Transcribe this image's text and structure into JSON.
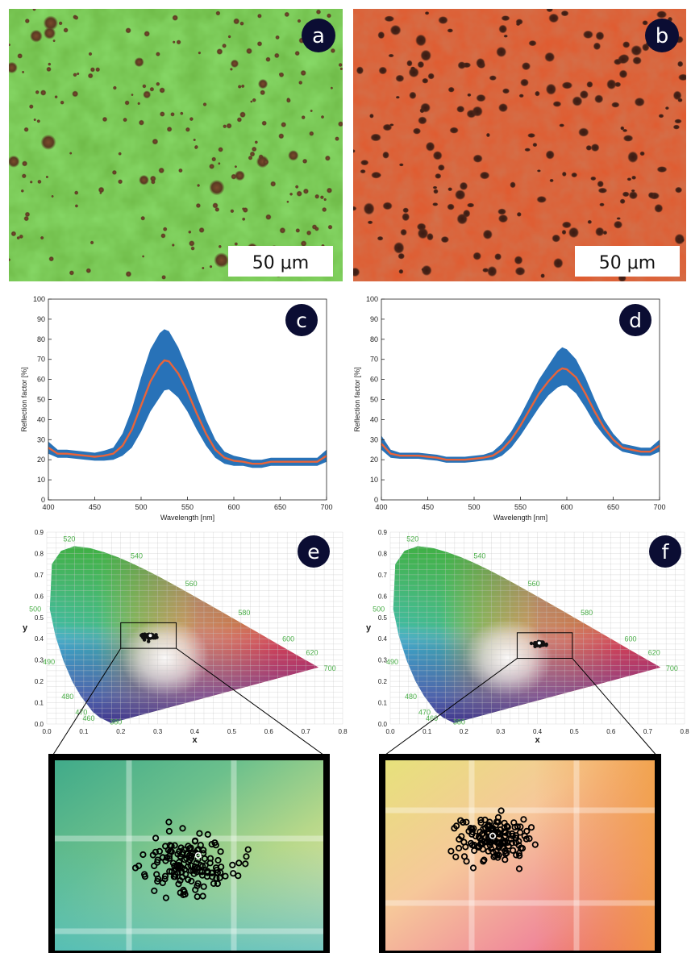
{
  "panels": {
    "a": {
      "letter": "a",
      "scalebar": "50 μm"
    },
    "b": {
      "letter": "b",
      "scalebar": "50 μm"
    },
    "c": {
      "letter": "c"
    },
    "d": {
      "letter": "d"
    },
    "e": {
      "letter": "e"
    },
    "f": {
      "letter": "f"
    }
  },
  "colors": {
    "micro_green": "#6db845",
    "micro_orange": "#e2582c",
    "band_blue": "#2872b8",
    "mean_orange": "#e8643a",
    "badge": "#0b0d33",
    "wavelength_label_green": "#4aae48"
  },
  "chart_data": [
    {
      "panel": "c",
      "type": "area",
      "xlabel": "Wavelength [nm]",
      "ylabel": "Reflection factor [%]",
      "xlim": [
        400,
        700
      ],
      "ylim": [
        0,
        100
      ],
      "xticks": [
        400,
        450,
        500,
        550,
        600,
        650,
        700
      ],
      "yticks": [
        0,
        10,
        20,
        30,
        40,
        50,
        60,
        70,
        80,
        90,
        100
      ],
      "grid": false,
      "x": [
        400,
        410,
        420,
        430,
        440,
        450,
        460,
        470,
        480,
        490,
        500,
        510,
        520,
        525,
        530,
        540,
        550,
        560,
        570,
        580,
        590,
        600,
        610,
        620,
        630,
        640,
        650,
        660,
        670,
        680,
        690,
        700
      ],
      "series": [
        {
          "role": "mean",
          "values": [
            26,
            23,
            23,
            22.5,
            22,
            21.5,
            22,
            23,
            27,
            35,
            47,
            59,
            67,
            69.5,
            69,
            63,
            54,
            43,
            33,
            25,
            21,
            19.5,
            19,
            18,
            18,
            19,
            19,
            19,
            19,
            19,
            19,
            22
          ]
        },
        {
          "role": "upper",
          "values": [
            29,
            25,
            25,
            24.5,
            24,
            23.5,
            24.5,
            26,
            33,
            45,
            61,
            75,
            83,
            85,
            84,
            76,
            65,
            52,
            40,
            30,
            24,
            22,
            21,
            20,
            20,
            21,
            21,
            21,
            21,
            21,
            21,
            25
          ]
        },
        {
          "role": "lower",
          "values": [
            23,
            21,
            21,
            20.5,
            20,
            19.5,
            19.5,
            20,
            22,
            26,
            34,
            44,
            51,
            54.5,
            55,
            51,
            44,
            35,
            27,
            21,
            18,
            17,
            17,
            16,
            16,
            17,
            17,
            17,
            17,
            17,
            17,
            19
          ]
        }
      ]
    },
    {
      "panel": "d",
      "type": "area",
      "xlabel": "Wavelength [nm]",
      "ylabel": "Reflection factor [%]",
      "xlim": [
        400,
        700
      ],
      "ylim": [
        0,
        100
      ],
      "xticks": [
        400,
        450,
        500,
        550,
        600,
        650,
        700
      ],
      "yticks": [
        0,
        10,
        20,
        30,
        40,
        50,
        60,
        70,
        80,
        90,
        100
      ],
      "grid": false,
      "x": [
        400,
        410,
        420,
        430,
        440,
        450,
        460,
        470,
        480,
        490,
        500,
        510,
        520,
        530,
        540,
        550,
        560,
        570,
        580,
        590,
        595,
        600,
        610,
        620,
        630,
        640,
        650,
        660,
        670,
        680,
        690,
        700
      ],
      "series": [
        {
          "role": "mean",
          "values": [
            28,
            23,
            22,
            22,
            22,
            21.5,
            21,
            20,
            20,
            20,
            20.5,
            21,
            22,
            25,
            30,
            37,
            45,
            53,
            59,
            64,
            65.5,
            65,
            61,
            53,
            44,
            36,
            30,
            26,
            25,
            24,
            24,
            27
          ]
        },
        {
          "role": "upper",
          "values": [
            32,
            25,
            23.5,
            23.5,
            23.5,
            23,
            22.5,
            21.5,
            21.5,
            21.5,
            22,
            22.5,
            24,
            28,
            34,
            42,
            51,
            60,
            67,
            74,
            76,
            75,
            70,
            61,
            50,
            40,
            33,
            28,
            27,
            26,
            26,
            30
          ]
        },
        {
          "role": "lower",
          "values": [
            25,
            21,
            20.5,
            20.5,
            20.5,
            20,
            19.5,
            18.5,
            18.5,
            18.5,
            19,
            19.5,
            20,
            22,
            26,
            32,
            39,
            46,
            52,
            56,
            57,
            57,
            53,
            46,
            38,
            32,
            27,
            24,
            23,
            22,
            22,
            24
          ]
        }
      ]
    },
    {
      "panel": "e",
      "type": "scatter",
      "xlabel": "x",
      "ylabel": "y",
      "xlim": [
        0,
        0.8
      ],
      "ylim": [
        0,
        0.9
      ],
      "xticks": [
        0,
        0.1,
        0.2,
        0.3,
        0.4,
        0.5,
        0.6,
        0.7,
        0.8
      ],
      "xtick_labels": [
        "0.0",
        "0.1",
        "0.2",
        "0.3",
        "0.4",
        "0.5",
        "0.6",
        "0.7",
        "0.8"
      ],
      "yticks": [
        0,
        0.1,
        0.2,
        0.3,
        0.4,
        0.5,
        0.6,
        0.7,
        0.8,
        0.9
      ],
      "ytick_labels": [
        "0.0",
        "0.1",
        "0.2",
        "0.3",
        "0.4",
        "0.5",
        "0.6",
        "0.7",
        "0.8",
        "0.9"
      ],
      "grid": true,
      "wavelength_labels": [
        {
          "text": "380",
          "x": 0.174,
          "y": 0.005
        },
        {
          "text": "460",
          "x": 0.144,
          "y": 0.03
        },
        {
          "text": "470",
          "x": 0.124,
          "y": 0.058
        },
        {
          "text": "480",
          "x": 0.091,
          "y": 0.133
        },
        {
          "text": "490",
          "x": 0.045,
          "y": 0.295
        },
        {
          "text": "500",
          "x": 0.008,
          "y": 0.538
        },
        {
          "text": "520",
          "x": 0.074,
          "y": 0.834
        },
        {
          "text": "540",
          "x": 0.23,
          "y": 0.754
        },
        {
          "text": "560",
          "x": 0.373,
          "y": 0.624
        },
        {
          "text": "580",
          "x": 0.512,
          "y": 0.487
        },
        {
          "text": "600",
          "x": 0.627,
          "y": 0.373
        },
        {
          "text": "620",
          "x": 0.691,
          "y": 0.308
        },
        {
          "text": "700",
          "x": 0.735,
          "y": 0.265
        }
      ],
      "cluster": {
        "center": [
          0.275,
          0.41
        ],
        "mean": [
          0.28,
          0.415
        ],
        "spread": [
          0.014,
          0.012
        ]
      },
      "zoom_box": {
        "x": [
          0.2,
          0.35
        ],
        "y": [
          0.355,
          0.475
        ]
      }
    },
    {
      "panel": "f",
      "type": "scatter",
      "xlabel": "x",
      "ylabel": "y",
      "xlim": [
        0,
        0.8
      ],
      "ylim": [
        0,
        0.9
      ],
      "xticks": [
        0,
        0.1,
        0.2,
        0.3,
        0.4,
        0.5,
        0.6,
        0.7,
        0.8
      ],
      "xtick_labels": [
        "0.0",
        "0.1",
        "0.2",
        "0.3",
        "0.4",
        "0.5",
        "0.6",
        "0.7",
        "0.8"
      ],
      "yticks": [
        0,
        0.1,
        0.2,
        0.3,
        0.4,
        0.5,
        0.6,
        0.7,
        0.8,
        0.9
      ],
      "ytick_labels": [
        "0.0",
        "0.1",
        "0.2",
        "0.3",
        "0.4",
        "0.5",
        "0.6",
        "0.7",
        "0.8",
        "0.9"
      ],
      "grid": true,
      "wavelength_labels": [
        {
          "text": "380",
          "x": 0.174,
          "y": 0.005
        },
        {
          "text": "460",
          "x": 0.144,
          "y": 0.03
        },
        {
          "text": "470",
          "x": 0.124,
          "y": 0.058
        },
        {
          "text": "480",
          "x": 0.091,
          "y": 0.133
        },
        {
          "text": "490",
          "x": 0.045,
          "y": 0.295
        },
        {
          "text": "500",
          "x": 0.008,
          "y": 0.538
        },
        {
          "text": "520",
          "x": 0.074,
          "y": 0.834
        },
        {
          "text": "540",
          "x": 0.23,
          "y": 0.754
        },
        {
          "text": "560",
          "x": 0.373,
          "y": 0.624
        },
        {
          "text": "580",
          "x": 0.512,
          "y": 0.487
        },
        {
          "text": "600",
          "x": 0.627,
          "y": 0.373
        },
        {
          "text": "620",
          "x": 0.691,
          "y": 0.308
        },
        {
          "text": "700",
          "x": 0.735,
          "y": 0.265
        }
      ],
      "cluster": {
        "center": [
          0.405,
          0.378
        ],
        "mean": [
          0.405,
          0.38
        ],
        "spread": [
          0.011,
          0.009
        ]
      },
      "zoom_box": {
        "x": [
          0.345,
          0.495
        ],
        "y": [
          0.308,
          0.428
        ]
      }
    }
  ]
}
